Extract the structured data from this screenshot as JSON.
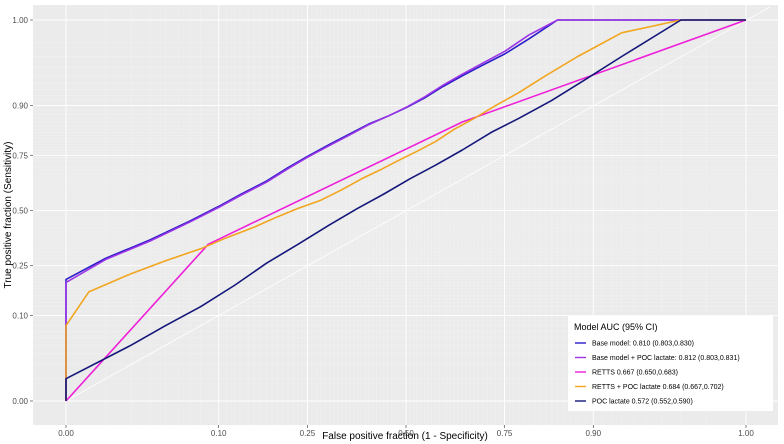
{
  "chart_data": {
    "type": "line",
    "title": "",
    "xlabel": "False positive fraction (1 - Specificity)",
    "ylabel": "True positive fraction (Sensitivity)",
    "x_ticks": [
      "0.00",
      "0.10",
      "0.25",
      "0.50",
      "0.75",
      "0.90",
      "1.00"
    ],
    "y_ticks": [
      "0.00",
      "0.10",
      "0.25",
      "0.50",
      "0.75",
      "0.90",
      "1.00"
    ],
    "xlim": [
      0,
      1
    ],
    "ylim": [
      0,
      1
    ],
    "axis_scale": "probit",
    "grid": true,
    "reference_diagonal": true,
    "legend": {
      "title": "Model AUC (95% CI)",
      "position": "bottom-right"
    },
    "series": [
      {
        "name": "Base model: 0.810 (0.803,0.830)",
        "color": "#2b1cc7",
        "x": [
          0,
          0.003,
          0.01,
          0.02,
          0.04,
          0.07,
          0.1,
          0.13,
          0.17,
          0.21,
          0.25,
          0.3,
          0.35,
          0.4,
          0.45,
          0.5,
          0.55,
          0.6,
          0.65,
          0.7,
          0.75,
          0.8,
          0.85,
          0.9,
          0.95,
          1.0
        ],
        "y": [
          0,
          0.09,
          0.2,
          0.28,
          0.36,
          0.45,
          0.52,
          0.58,
          0.64,
          0.7,
          0.745,
          0.79,
          0.825,
          0.855,
          0.875,
          0.895,
          0.915,
          0.935,
          0.95,
          0.962,
          0.972,
          0.982,
          0.99,
          0.995,
          0.998,
          1.0
        ]
      },
      {
        "name": "Base model + POC lactate: 0.812 (0.803,0.831)",
        "color": "#9b35e8",
        "x": [
          0,
          0.003,
          0.01,
          0.02,
          0.04,
          0.07,
          0.1,
          0.13,
          0.17,
          0.21,
          0.25,
          0.3,
          0.35,
          0.4,
          0.45,
          0.5,
          0.55,
          0.6,
          0.65,
          0.7,
          0.75,
          0.8,
          0.85,
          0.9,
          0.95,
          1.0
        ],
        "y": [
          0,
          0.085,
          0.19,
          0.275,
          0.355,
          0.445,
          0.515,
          0.575,
          0.635,
          0.695,
          0.742,
          0.786,
          0.822,
          0.853,
          0.875,
          0.896,
          0.917,
          0.937,
          0.952,
          0.964,
          0.974,
          0.984,
          0.991,
          0.996,
          0.999,
          1.0
        ]
      },
      {
        "name": "RETTS 0.667 (0.650,0.683)",
        "color": "#ee1fd8",
        "x": [
          0,
          0.088,
          0.65,
          1.0
        ],
        "y": [
          0,
          0.34,
          0.86,
          1.0
        ]
      },
      {
        "name": "RETTS + POC lactate 0.684 (0.667,0.702)",
        "color": "#f2a51f",
        "x": [
          0,
          0.005,
          0.015,
          0.03,
          0.05,
          0.08,
          0.11,
          0.15,
          0.19,
          0.23,
          0.28,
          0.33,
          0.38,
          0.43,
          0.48,
          0.53,
          0.58,
          0.63,
          0.68,
          0.73,
          0.78,
          0.83,
          0.88,
          0.93,
          0.97,
          1.0
        ],
        "y": [
          0,
          0.08,
          0.16,
          0.22,
          0.27,
          0.32,
          0.37,
          0.42,
          0.47,
          0.51,
          0.55,
          0.6,
          0.65,
          0.69,
          0.73,
          0.765,
          0.8,
          0.84,
          0.87,
          0.9,
          0.925,
          0.95,
          0.97,
          0.985,
          0.995,
          1.0
        ]
      },
      {
        "name": "POC lactate 0.572 (0.552,0.590)",
        "color": "#14177a",
        "x": [
          0,
          0.01,
          0.03,
          0.05,
          0.08,
          0.12,
          0.17,
          0.23,
          0.3,
          0.37,
          0.44,
          0.51,
          0.58,
          0.65,
          0.72,
          0.78,
          0.84,
          0.89,
          0.93,
          0.97,
          1.0
        ],
        "y": [
          0,
          0.02,
          0.05,
          0.08,
          0.12,
          0.18,
          0.26,
          0.34,
          0.43,
          0.51,
          0.58,
          0.65,
          0.71,
          0.77,
          0.83,
          0.87,
          0.91,
          0.945,
          0.97,
          0.99,
          1.0
        ]
      }
    ]
  }
}
